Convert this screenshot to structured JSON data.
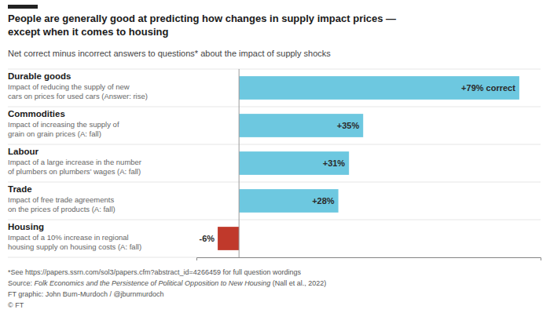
{
  "chart_data": {
    "type": "bar",
    "orientation": "horizontal",
    "title": "People are generally good at predicting how changes in supply impact prices —\nexcept when it comes to housing",
    "subtitle": "Net correct minus incorrect answers to questions* about the impact of supply shocks",
    "categories": [
      "Durable goods",
      "Commodities",
      "Labour",
      "Trade",
      "Housing"
    ],
    "values": [
      79,
      35,
      31,
      28,
      -6
    ],
    "value_labels": [
      "+79% correct",
      "+35%",
      "+31%",
      "+28%",
      "-6%"
    ],
    "data_labels": true,
    "colors": [
      "#6dc8e0",
      "#6dc8e0",
      "#6dc8e0",
      "#6dc8e0",
      "#c0392b"
    ],
    "annotations": [
      "Impact of reducing the supply of new\ncars on prices for used cars (Answer: rise)",
      "Impact of increasing the supply of\ngrain on grain prices (A: fall)",
      "Impact of a large increase in the number\nof plumbers on plumbers’ wages (A: fall)",
      "Impact of free trade agreements\non the prices of products (A: fall)",
      "Impact of a 10% increase in regional\nhousing supply on housing costs (A: fall)"
    ],
    "footnotes": [
      "*See https://papers.ssrn.com/sol3/papers.cfm?abstract_id=4266459 for full question wordings",
      [
        "Source: ",
        "Folk Economics and the Persistence of Political Opposition to New Housing",
        " (Nall et al., 2022)"
      ],
      "FT graphic: John Burn-Murdoch / @jburnmurdoch",
      "© FT"
    ],
    "xlim": [
      -12,
      85
    ],
    "tick_labels": false,
    "grid": false
  }
}
